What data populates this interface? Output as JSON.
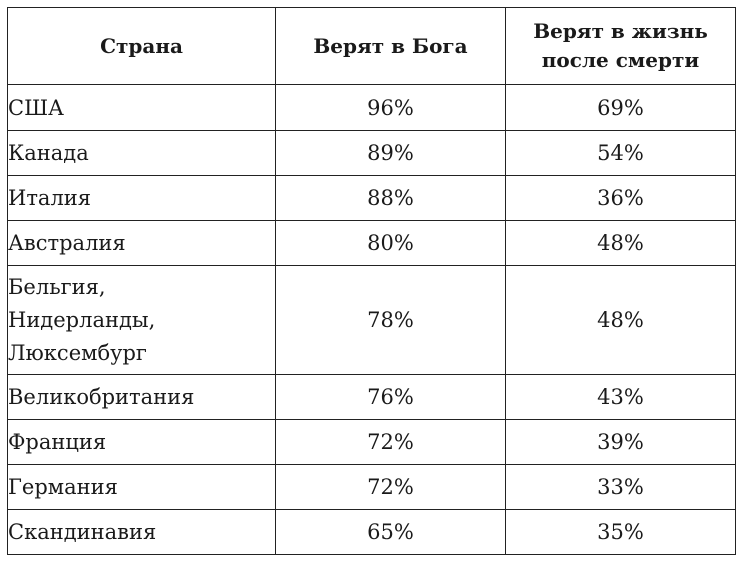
{
  "headers": {
    "country": "Страна",
    "believe_god": "Верят в Бога",
    "believe_afterlife_line1": "Верят в жизнь",
    "believe_afterlife_line2": "после смерти"
  },
  "rows": [
    {
      "country": [
        "США"
      ],
      "god": "96%",
      "afterlife": "69%"
    },
    {
      "country": [
        "Канада"
      ],
      "god": "89%",
      "afterlife": "54%"
    },
    {
      "country": [
        "Италия"
      ],
      "god": "88%",
      "afterlife": "36%"
    },
    {
      "country": [
        "Австралия"
      ],
      "god": "80%",
      "afterlife": "48%"
    },
    {
      "country": [
        "Бельгия,",
        "Нидерланды,",
        "Люксембург"
      ],
      "god": "78%",
      "afterlife": "48%"
    },
    {
      "country": [
        "Великобритания"
      ],
      "god": "76%",
      "afterlife": "43%"
    },
    {
      "country": [
        "Франция"
      ],
      "god": "72%",
      "afterlife": "39%"
    },
    {
      "country": [
        "Германия"
      ],
      "god": "72%",
      "afterlife": "33%"
    },
    {
      "country": [
        "Скандинавия"
      ],
      "god": "65%",
      "afterlife": "35%"
    }
  ]
}
